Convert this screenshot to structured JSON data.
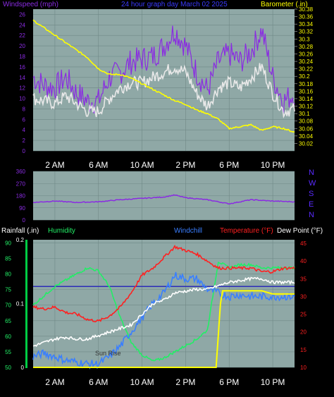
{
  "chart_data": [
    {
      "type": "line",
      "title": "24 hour graph day  March 02 2025",
      "left_label": "Windspeed (mph)",
      "right_label": "Barometer (.in)",
      "x_ticks": [
        "2 AM",
        "6 AM",
        "10 AM",
        "2 PM",
        "6 PM",
        "10 PM"
      ],
      "y_left_ticks": [
        "0",
        "2",
        "4",
        "6",
        "8",
        "10",
        "12",
        "14",
        "16",
        "18",
        "20",
        "22",
        "24",
        "26"
      ],
      "y_left_range": [
        0,
        27
      ],
      "y_right_ticks": [
        "30.02",
        "30.04",
        "30.06",
        "30.08",
        "30.1",
        "30.12",
        "30.14",
        "30.16",
        "30.18",
        "30.2",
        "30.22",
        "30.24",
        "30.26",
        "30.28",
        "30.3",
        "30.32",
        "30.34",
        "30.36",
        "30.38"
      ],
      "y_right_range": [
        30.0,
        30.38
      ],
      "grid": true,
      "series": [
        {
          "key": "gust",
          "axis": "left",
          "color": "#8a2be2",
          "x": [
            0,
            1,
            2,
            3,
            4,
            5,
            6,
            7,
            8,
            9,
            10,
            11,
            12,
            13,
            14,
            15,
            16,
            17,
            18,
            19,
            20,
            21,
            22,
            23,
            24
          ],
          "y": [
            14,
            12.5,
            12,
            14,
            11,
            9.5,
            9.5,
            14,
            15,
            17,
            17.5,
            18,
            20,
            23,
            20,
            15,
            11.5,
            17,
            18.5,
            17,
            19,
            23,
            14,
            9.5,
            11
          ]
        },
        {
          "key": "wind",
          "axis": "left",
          "color": "#e8e8e8",
          "x": [
            0,
            1,
            2,
            3,
            4,
            5,
            6,
            7,
            8,
            9,
            10,
            11,
            12,
            13,
            14,
            15,
            16,
            17,
            18,
            19,
            20,
            21,
            22,
            23,
            24
          ],
          "y": [
            10,
            9.5,
            9,
            10.5,
            9,
            7.5,
            7.5,
            10,
            12,
            13,
            13,
            14,
            15,
            16,
            15,
            11,
            8.5,
            12,
            13,
            12,
            14,
            16,
            11,
            7.5,
            8
          ]
        },
        {
          "key": "barometer",
          "axis": "right",
          "color": "#ffff00",
          "x": [
            0,
            1,
            2,
            3,
            4,
            5,
            6,
            7,
            8,
            9,
            10,
            11,
            12,
            13,
            14,
            15,
            16,
            17,
            18,
            19,
            20,
            21,
            22,
            23,
            24
          ],
          "y": [
            30.35,
            30.33,
            30.31,
            30.29,
            30.27,
            30.25,
            30.22,
            30.205,
            30.205,
            30.195,
            30.18,
            30.165,
            30.15,
            30.135,
            30.125,
            30.11,
            30.1,
            30.085,
            30.06,
            30.065,
            30.07,
            30.055,
            30.065,
            30.06,
            30.05
          ]
        }
      ]
    },
    {
      "type": "line",
      "right_label": "N W S E N",
      "direction_letters": [
        "N",
        "W",
        "S",
        "E",
        "N"
      ],
      "y_left_ticks": [
        "360",
        "270",
        "180",
        "90",
        "0"
      ],
      "y_range": [
        0,
        360
      ],
      "grid": true,
      "series": [
        {
          "key": "direction",
          "color": "#8a2be2",
          "x": [
            0,
            2,
            4,
            6,
            8,
            10,
            12,
            13,
            14,
            16,
            18,
            19,
            20,
            22,
            24
          ],
          "y": [
            130,
            140,
            130,
            135,
            150,
            160,
            170,
            185,
            165,
            150,
            120,
            135,
            150,
            140,
            135
          ]
        }
      ]
    },
    {
      "type": "line",
      "labels": {
        "rainfall": "Rainfall (.in)",
        "humidity": "Humidity",
        "windchill": "Windchill",
        "temperature": "Temperature (°F)",
        "dewpoint": "Dew Point (°F)"
      },
      "colors": {
        "rainfall": "#ffffff",
        "humidity": "#22ee66",
        "windchill": "#3a7fff",
        "temperature": "#ff2020",
        "dewpoint": "#ffffff"
      },
      "rain_axis_ticks": [
        "0.2",
        "0.1",
        "0"
      ],
      "y_left_ticks": [
        "90",
        "85",
        "80",
        "75",
        "70",
        "65",
        "60",
        "55",
        "50"
      ],
      "y_left_range": [
        50,
        91
      ],
      "y_right_ticks": [
        "45",
        "40",
        "35",
        "30",
        "25",
        "20",
        "15",
        "10"
      ],
      "y_right_range": [
        10,
        46
      ],
      "x_ticks": [
        "2 AM",
        "6 AM",
        "10 AM",
        "2 PM",
        "6 PM",
        "10 PM"
      ],
      "annotation": "Sun Rise",
      "grid": true,
      "series": [
        {
          "key": "humidity",
          "axis": "left",
          "color": "#22ee66",
          "x": [
            0,
            1,
            2,
            3,
            4,
            5,
            6,
            7,
            8,
            9,
            10,
            11,
            12,
            13,
            14,
            15,
            16,
            17,
            18,
            19,
            20,
            21,
            22,
            23,
            24
          ],
          "y": [
            70,
            73,
            76,
            78,
            80,
            82,
            81,
            76,
            66,
            58,
            54,
            52,
            53,
            55,
            57,
            59,
            62,
            84,
            82,
            83,
            83,
            82,
            82,
            82,
            82
          ]
        },
        {
          "key": "temperature",
          "axis": "right",
          "color": "#ff2020",
          "x": [
            0,
            1,
            2,
            3,
            4,
            5,
            6,
            7,
            8,
            9,
            10,
            11,
            12,
            13,
            14,
            15,
            16,
            17,
            18,
            19,
            20,
            21,
            22,
            23,
            24
          ],
          "y": [
            27,
            26.5,
            27,
            25.5,
            25,
            23.5,
            23,
            24.5,
            27,
            31,
            36,
            38,
            41,
            44,
            43,
            42,
            40,
            38,
            38,
            38,
            38,
            37,
            37,
            38,
            38
          ]
        },
        {
          "key": "windchill",
          "axis": "right",
          "color": "#3a7fff",
          "x": [
            0,
            1,
            2,
            3,
            4,
            5,
            6,
            7,
            8,
            9,
            10,
            11,
            12,
            13,
            14,
            15,
            16,
            17,
            18,
            19,
            20,
            21,
            22,
            23,
            24
          ],
          "y": [
            13,
            14,
            13,
            12,
            11.5,
            11,
            11,
            13,
            16,
            20,
            24,
            28,
            31,
            36,
            35,
            35,
            32,
            31,
            30,
            30.5,
            30,
            30,
            30,
            30,
            30
          ]
        },
        {
          "key": "dewpoint",
          "axis": "right",
          "color": "#ffffff",
          "x": [
            0,
            1,
            2,
            3,
            4,
            5,
            6,
            7,
            8,
            9,
            10,
            11,
            12,
            13,
            14,
            15,
            16,
            17,
            18,
            19,
            20,
            21,
            22,
            23,
            24
          ],
          "y": [
            16,
            17,
            18,
            18.5,
            18,
            18,
            19,
            20,
            21,
            22,
            25,
            28,
            29,
            31,
            31.5,
            32,
            32,
            33,
            34,
            34.5,
            35,
            35,
            34,
            34,
            34
          ]
        },
        {
          "key": "rainfall",
          "axis": "rain",
          "color": "#ffff00",
          "x": [
            0,
            16,
            16.8,
            17.2,
            17.4,
            18,
            20,
            21,
            22,
            23,
            24
          ],
          "y": [
            0,
            0,
            0,
            0.1,
            0.12,
            0.12,
            0.12,
            0.12,
            0.115,
            0.115,
            0.115
          ]
        }
      ],
      "reference_line": {
        "axis": "left",
        "y": 76,
        "color": "#2c2cb8"
      }
    }
  ]
}
